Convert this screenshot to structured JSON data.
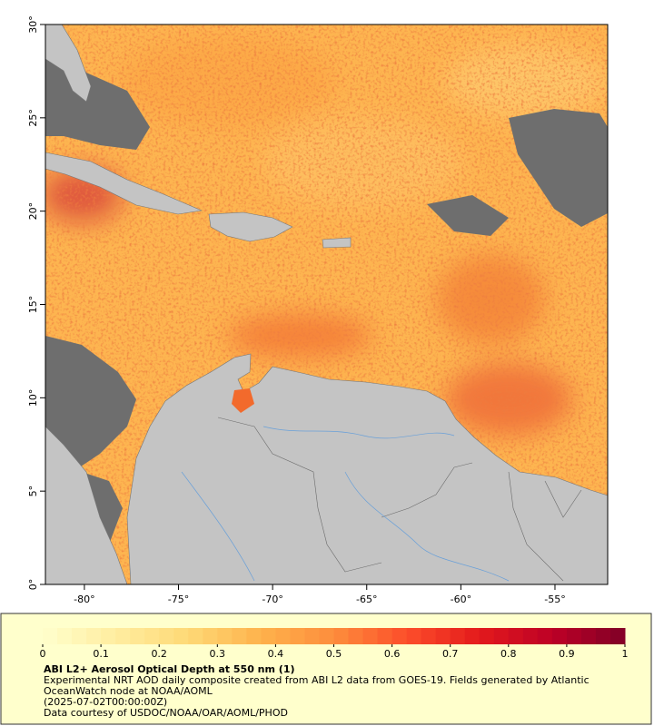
{
  "map": {
    "lonlim": [
      -82.07,
      -52.2
    ],
    "latlim": [
      0,
      30
    ],
    "lon_ticks": [
      {
        "value": -80,
        "label": "-80°"
      },
      {
        "value": -75,
        "label": "-75°"
      },
      {
        "value": -70,
        "label": "-70°"
      },
      {
        "value": -65,
        "label": "-65°"
      },
      {
        "value": -60,
        "label": "-60°"
      },
      {
        "value": -55,
        "label": "-55°"
      }
    ],
    "lat_ticks": [
      {
        "value": 0,
        "label": "0°"
      },
      {
        "value": 5,
        "label": "5°"
      },
      {
        "value": 10,
        "label": "10°"
      },
      {
        "value": 15,
        "label": "15°"
      },
      {
        "value": 20,
        "label": "20°"
      },
      {
        "value": 25,
        "label": "25°"
      },
      {
        "value": 30,
        "label": "30°"
      }
    ]
  },
  "colorbar": {
    "range": [
      0,
      1
    ],
    "ticks": [
      0,
      0.1,
      0.2,
      0.3,
      0.4,
      0.5,
      0.6,
      0.7,
      0.8,
      0.9,
      1
    ],
    "colors": [
      "#ffffcc",
      "#ffeda0",
      "#fed976",
      "#feb24c",
      "#fd8d3c",
      "#fc4e2a",
      "#e31a1c",
      "#bd0026",
      "#800026"
    ]
  },
  "caption": {
    "title": "ABI L2+ Aerosol Optical Depth at 550 nm (1)",
    "description": "Experimental NRT AOD daily composite created from ABI L2 data from GOES-19. Fields generated by Atlantic OceanWatch node at NOAA/AOML",
    "timestamp": "(2025-07-02T00:00:00Z)",
    "credit": "Data courtesy of USDOC/NOAA/OAR/AOML/PHOD"
  }
}
